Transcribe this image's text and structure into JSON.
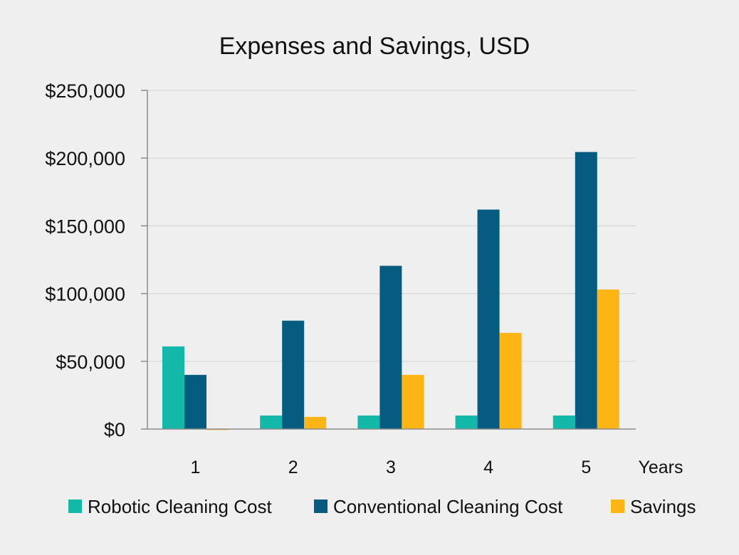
{
  "chart_data": {
    "type": "bar",
    "title": "Expenses and Savings, USD",
    "xlabel": "Years",
    "ylabel": "",
    "categories": [
      "1",
      "2",
      "3",
      "4",
      "5"
    ],
    "series": [
      {
        "name": "Robotic Cleaning Cost",
        "color": "#13b8a8",
        "values": [
          61000,
          10000,
          10000,
          10000,
          10000
        ]
      },
      {
        "name": "Conventional Cleaning Cost",
        "color": "#065c80",
        "values": [
          40000,
          80000,
          120500,
          162000,
          204500
        ]
      },
      {
        "name": "Savings",
        "color": "#fdb515",
        "values": [
          -700,
          9000,
          40000,
          71000,
          103000
        ]
      }
    ],
    "ylim": [
      0,
      250000
    ],
    "yticks": [
      0,
      50000,
      100000,
      150000,
      200000,
      250000
    ],
    "ytick_labels": [
      "$0",
      "$50,000",
      "$100,000",
      "$150,000",
      "$200,000",
      "$250,000"
    ],
    "grid": true,
    "legend_position": "bottom"
  }
}
